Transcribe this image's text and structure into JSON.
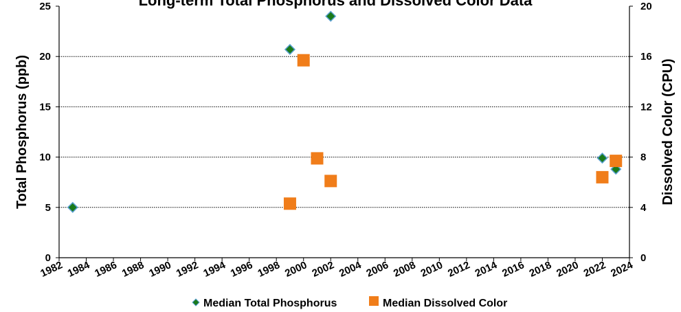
{
  "chart_data": {
    "type": "scatter",
    "title": "Long-term Total Phosphorus and Dissolved Color Data",
    "ylabel": "Total Phosphorus (ppb)",
    "y2label": "Dissolved Color (CPU)",
    "xlim": [
      1982,
      2024
    ],
    "ylim": [
      0,
      25
    ],
    "y2lim": [
      0,
      20
    ],
    "x_ticks": [
      "1982",
      "1984",
      "1986",
      "1988",
      "1990",
      "1992",
      "1994",
      "1996",
      "1998",
      "2000",
      "2002",
      "2004",
      "2006",
      "2008",
      "2010",
      "2012",
      "2014",
      "2016",
      "2018",
      "2020",
      "2022",
      "2024"
    ],
    "y_ticks": [
      "0",
      "5",
      "10",
      "15",
      "20",
      "25"
    ],
    "y2_ticks": [
      "0",
      "4",
      "8",
      "12",
      "16",
      "20"
    ],
    "grid": "horizontal dotted",
    "legend_position": "bottom",
    "series": [
      {
        "name": "Median Total Phosphorus",
        "axis": "left",
        "marker": "diamond",
        "color": "#1a7a1a",
        "edge_color": "#5aa0d0",
        "points": [
          {
            "x": 1983,
            "y": 5.0
          },
          {
            "x": 1999,
            "y": 20.7
          },
          {
            "x": 2002,
            "y": 24.0
          },
          {
            "x": 2022,
            "y": 9.9
          },
          {
            "x": 2023,
            "y": 8.8
          }
        ]
      },
      {
        "name": "Median Dissolved Color",
        "axis": "right",
        "marker": "square",
        "color": "#f07d1a",
        "points": [
          {
            "x": 1999,
            "y": 4.3
          },
          {
            "x": 2000,
            "y": 15.7
          },
          {
            "x": 2001,
            "y": 7.9
          },
          {
            "x": 2002,
            "y": 6.1
          },
          {
            "x": 2022,
            "y": 6.4
          },
          {
            "x": 2023,
            "y": 7.7
          }
        ]
      }
    ]
  }
}
